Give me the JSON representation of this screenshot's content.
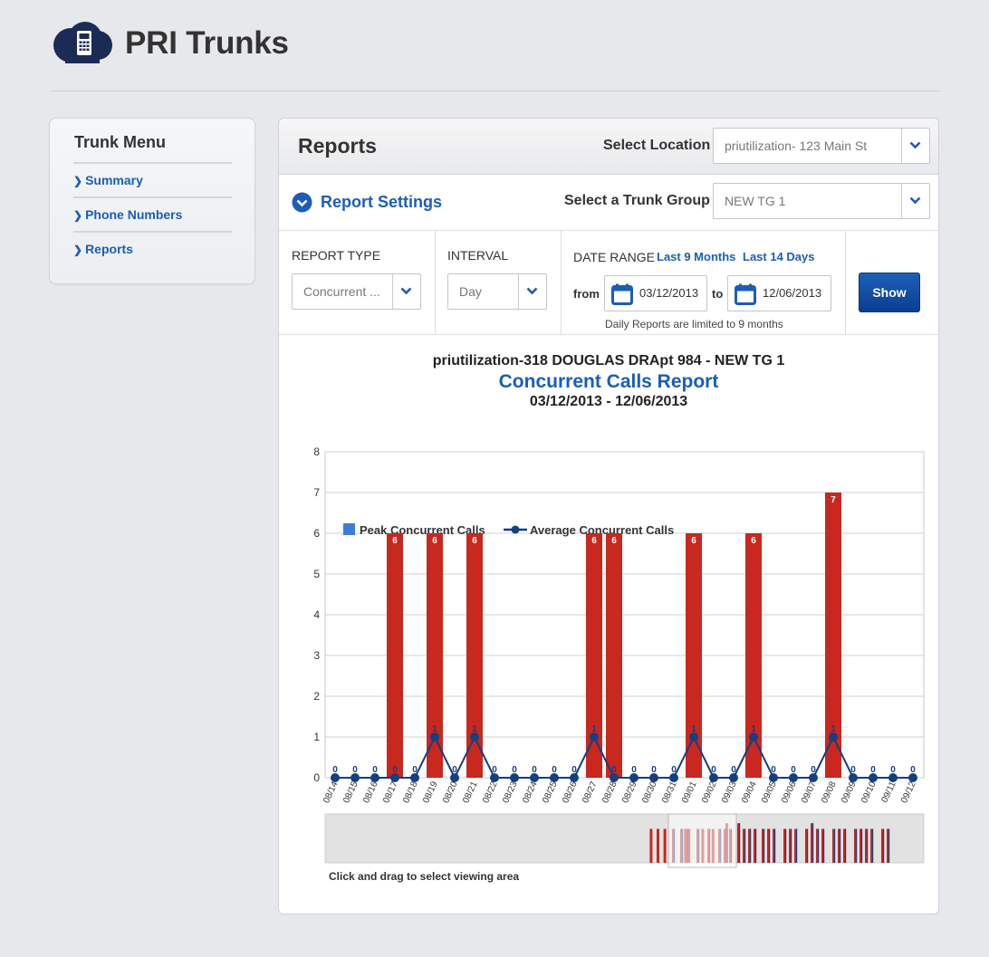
{
  "app": {
    "title": "PRI Trunks",
    "logo_icon": "phone-cloud-icon"
  },
  "sidebar": {
    "title": "Trunk Menu",
    "items": [
      {
        "label": "Summary"
      },
      {
        "label": "Phone Numbers"
      },
      {
        "label": "Reports"
      }
    ]
  },
  "reports": {
    "title": "Reports",
    "select_location_label": "Select Location",
    "location_value": "priutilization-  123 Main St",
    "report_settings_label": "Report Settings",
    "select_trunk_label": "Select a Trunk Group",
    "trunk_value": "NEW TG 1",
    "report_type_label": "REPORT TYPE",
    "report_type_value": "Concurrent ...",
    "interval_label": "INTERVAL",
    "interval_value": "Day",
    "date_range_label": "DATE RANGE",
    "last9_link": "Last 9 Months",
    "last14_link": "Last 14 Days",
    "from_label": "from",
    "from_date": "03/12/2013",
    "to_label": "to",
    "to_date": "12/06/2013",
    "limit_note": "Daily Reports are limited to 9 months",
    "show_button": "Show",
    "nav_hint": "Click and drag to select viewing area"
  },
  "colors": {
    "accent": "#1b5db7",
    "bar": "#c8281e",
    "line": "#153f7f",
    "legend_peak": "#3b7dd8"
  },
  "chart_data": {
    "type": "bar",
    "title_line1": "priutilization-318 DOUGLAS DRApt 984 - NEW TG 1",
    "title": "Concurrent Calls Report",
    "subtitle": "03/12/2013 - 12/06/2013",
    "ylim": [
      0,
      8
    ],
    "yticks": [
      0,
      1,
      2,
      3,
      4,
      5,
      6,
      7,
      8
    ],
    "legend_position": "top-left",
    "grid": true,
    "categories": [
      "08/14",
      "08/15",
      "08/16",
      "08/17",
      "08/18",
      "08/19",
      "08/20",
      "08/21",
      "08/22",
      "08/23",
      "08/24",
      "08/25",
      "08/26",
      "08/27",
      "08/28",
      "08/29",
      "08/30",
      "08/31",
      "09/01",
      "09/02",
      "09/03",
      "09/04",
      "09/05",
      "09/06",
      "09/07",
      "09/08",
      "09/09",
      "09/10",
      "09/11",
      "09/12"
    ],
    "series": [
      {
        "name": "Peak Concurrent Calls",
        "type": "bar",
        "values": [
          0,
          0,
          0,
          6,
          0,
          6,
          0,
          6,
          0,
          0,
          0,
          0,
          0,
          6,
          6,
          0,
          0,
          0,
          6,
          0,
          0,
          6,
          0,
          0,
          0,
          7,
          0,
          0,
          0,
          0
        ]
      },
      {
        "name": "Average Concurrent Calls",
        "type": "line",
        "values": [
          0,
          0,
          0,
          0,
          0,
          1,
          0,
          1,
          0,
          0,
          0,
          0,
          0,
          1,
          0,
          0,
          0,
          0,
          1,
          0,
          0,
          1,
          0,
          0,
          0,
          1,
          0,
          0,
          0,
          0
        ]
      }
    ]
  }
}
